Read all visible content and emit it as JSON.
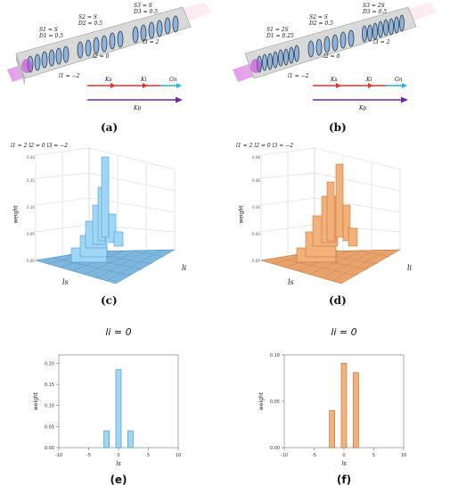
{
  "colors": {
    "blue": "#9fd6f5",
    "blue_edge": "#3b8fc4",
    "orange": "#f2b07a",
    "orange_edge": "#b9692a",
    "red": "#e0342e",
    "cyan": "#2bb3e0",
    "purple": "#6a2fa0"
  },
  "panel_a": {
    "caption": "(a)",
    "seg1": [
      "S1 = S",
      "D1 = 0.5"
    ],
    "seg2": [
      "S2 = S",
      "D2 = 0.5"
    ],
    "seg3": [
      "S3 = S",
      "D3 = 0.5"
    ],
    "l1": "l1 = −2",
    "l2": "l2 = 0",
    "l3": "l3 = 2",
    "k_s": "Ks",
    "k_i": "Ki",
    "g_n": "Gn",
    "k_p": "Kp"
  },
  "panel_b": {
    "caption": "(b)",
    "seg1": [
      "S1 = 2S",
      "D1 = 0.25"
    ],
    "seg2": [
      "S2 = S",
      "D2 = 0.5"
    ],
    "seg3": [
      "S3 = 2S",
      "D3 = 0.5"
    ],
    "l1": "l1 = −2",
    "l2": "l2 = 0",
    "l3": "l3 = 2",
    "k_s": "Ks",
    "k_i": "Ki",
    "g_n": "Gn",
    "k_p": "Kp"
  },
  "panel_c": {
    "caption": "(c)",
    "header": "l1 = 2  l2 = 0  l3 = −2",
    "zlabel": "weight",
    "xlabel": "ls",
    "ylabel": "li"
  },
  "panel_d": {
    "caption": "(d)",
    "header": "l1 = 2  l2 = 0  l3 = −2",
    "zlabel": "weight",
    "xlabel": "ls",
    "ylabel": "li"
  },
  "chart_data": [
    {
      "type": "bar",
      "title": "li = 0",
      "xlabel": "ls",
      "ylabel": "weight",
      "xlim": [
        -10,
        10
      ],
      "ylim": [
        0,
        0.22
      ],
      "xticks": [
        -10,
        -5,
        0,
        5,
        10
      ],
      "yticks": [
        "0.00",
        "0.05",
        "0.10",
        "0.15",
        "0.20"
      ],
      "x": [
        -2,
        0,
        2
      ],
      "values": [
        0.04,
        0.185,
        0.04
      ],
      "color": "#9fd6f5",
      "caption": "(e)"
    },
    {
      "type": "bar",
      "title": "li = 0",
      "xlabel": "ls",
      "ylabel": "weight",
      "xlim": [
        -10,
        10
      ],
      "ylim": [
        0,
        0.1
      ],
      "xticks": [
        -10,
        -5,
        0,
        5,
        10
      ],
      "yticks": [
        "0.00",
        "0.05",
        "0.10"
      ],
      "x": [
        -2,
        0,
        2
      ],
      "values": [
        0.04,
        0.091,
        0.081
      ],
      "color": "#f2b07a",
      "caption": "(f)"
    }
  ]
}
